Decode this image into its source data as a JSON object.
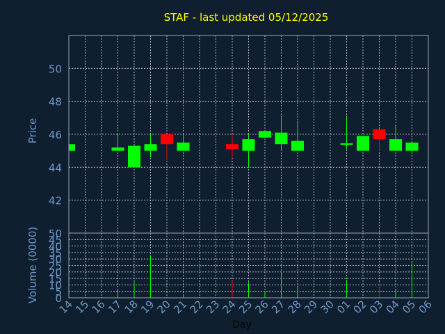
{
  "chart_data": [
    {
      "type": "candlestick",
      "title": "STAF - last updated 05/12/2025",
      "ylabel": "Price",
      "ylim": [
        40,
        52
      ],
      "yticks": [
        42,
        44,
        46,
        48,
        50
      ],
      "x": [
        "14",
        "15",
        "16",
        "17",
        "18",
        "19",
        "20",
        "21",
        "22",
        "23",
        "24",
        "25",
        "26",
        "27",
        "28",
        "29",
        "30",
        "01",
        "02",
        "03",
        "04",
        "05",
        "06"
      ],
      "candles": [
        {
          "day": "14",
          "open": 45.0,
          "close": 45.4,
          "high": 45.4,
          "low": 45.0,
          "direction": "up"
        },
        {
          "day": "17",
          "open": 45.0,
          "close": 45.2,
          "high": 46.0,
          "low": 45.0,
          "direction": "up"
        },
        {
          "day": "18",
          "open": 44.0,
          "close": 45.3,
          "high": 45.3,
          "low": 44.0,
          "direction": "up"
        },
        {
          "day": "19",
          "open": 45.0,
          "close": 45.4,
          "high": 46.0,
          "low": 44.6,
          "direction": "up"
        },
        {
          "day": "20",
          "open": 46.0,
          "close": 45.4,
          "high": 46.0,
          "low": 44.5,
          "direction": "down"
        },
        {
          "day": "21",
          "open": 45.0,
          "close": 45.5,
          "high": 46.0,
          "low": 45.0,
          "direction": "up"
        },
        {
          "day": "24",
          "open": 45.4,
          "close": 45.1,
          "high": 46.0,
          "low": 44.6,
          "direction": "down"
        },
        {
          "day": "25",
          "open": 45.0,
          "close": 45.7,
          "high": 46.0,
          "low": 44.0,
          "direction": "up"
        },
        {
          "day": "26",
          "open": 45.8,
          "close": 46.2,
          "high": 46.2,
          "low": 45.8,
          "direction": "up"
        },
        {
          "day": "27",
          "open": 45.4,
          "close": 46.1,
          "high": 47.0,
          "low": 45.0,
          "direction": "up"
        },
        {
          "day": "28",
          "open": 45.0,
          "close": 45.6,
          "high": 46.8,
          "low": 45.0,
          "direction": "up"
        },
        {
          "day": "01",
          "open": 45.4,
          "close": 45.45,
          "high": 47.0,
          "low": 45.1,
          "direction": "up"
        },
        {
          "day": "02",
          "open": 45.0,
          "close": 45.9,
          "high": 45.9,
          "low": 45.0,
          "direction": "up"
        },
        {
          "day": "03",
          "open": 46.3,
          "close": 45.7,
          "high": 46.3,
          "low": 45.0,
          "direction": "down"
        },
        {
          "day": "04",
          "open": 45.0,
          "close": 45.7,
          "high": 46.5,
          "low": 45.0,
          "direction": "up"
        },
        {
          "day": "05",
          "open": 45.0,
          "close": 45.5,
          "high": 45.5,
          "low": 44.8,
          "direction": "up"
        }
      ]
    },
    {
      "type": "bar",
      "ylabel": "Volume (0000)",
      "xlabel": "Day",
      "ylim": [
        0,
        50
      ],
      "yticks": [
        0,
        5,
        10,
        15,
        20,
        25,
        30,
        35,
        40,
        45,
        50
      ],
      "x": [
        "14",
        "15",
        "16",
        "17",
        "18",
        "19",
        "20",
        "21",
        "22",
        "23",
        "24",
        "25",
        "26",
        "27",
        "28",
        "29",
        "30",
        "01",
        "02",
        "03",
        "04",
        "05",
        "06"
      ],
      "values": [
        {
          "day": "17",
          "volume": 6,
          "direction": "up"
        },
        {
          "day": "18",
          "volume": 12,
          "direction": "up"
        },
        {
          "day": "19",
          "volume": 32,
          "direction": "up"
        },
        {
          "day": "21",
          "volume": 2,
          "direction": "up"
        },
        {
          "day": "24",
          "volume": 13,
          "direction": "down"
        },
        {
          "day": "25",
          "volume": 12,
          "direction": "up"
        },
        {
          "day": "26",
          "volume": 5,
          "direction": "up"
        },
        {
          "day": "27",
          "volume": 20,
          "direction": "up"
        },
        {
          "day": "28",
          "volume": 8,
          "direction": "up"
        },
        {
          "day": "01",
          "volume": 14,
          "direction": "up"
        },
        {
          "day": "03",
          "volume": 12,
          "direction": "down"
        },
        {
          "day": "04",
          "volume": 6,
          "direction": "up"
        },
        {
          "day": "05",
          "volume": 28,
          "direction": "up"
        }
      ]
    }
  ],
  "colors": {
    "background": "#0f1f30",
    "title": "#ffff00",
    "up": "#00ff00",
    "down": "#ff0000",
    "tick": "#6f9ac9",
    "grid": "#d8d8d8"
  }
}
